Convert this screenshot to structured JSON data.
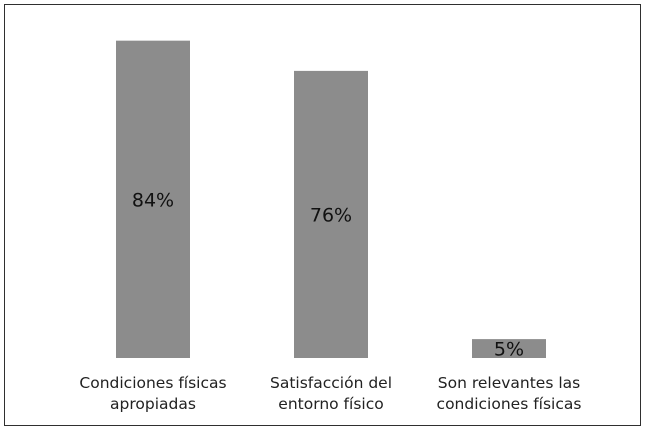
{
  "chart_data": {
    "type": "bar",
    "categories": [
      [
        "Condiciones físicas",
        "apropiadas"
      ],
      [
        "Satisfacción del",
        "entorno físico"
      ],
      [
        "Son  relevantes las",
        "condiciones físicas"
      ]
    ],
    "values": [
      84,
      76,
      5
    ],
    "data_labels": [
      "84%",
      "76%",
      "5%"
    ],
    "ylim": [
      0,
      90
    ],
    "grid": false,
    "legend": "none",
    "bar_color": "#8c8c8c",
    "title": "",
    "xlabel": "",
    "ylabel": ""
  }
}
